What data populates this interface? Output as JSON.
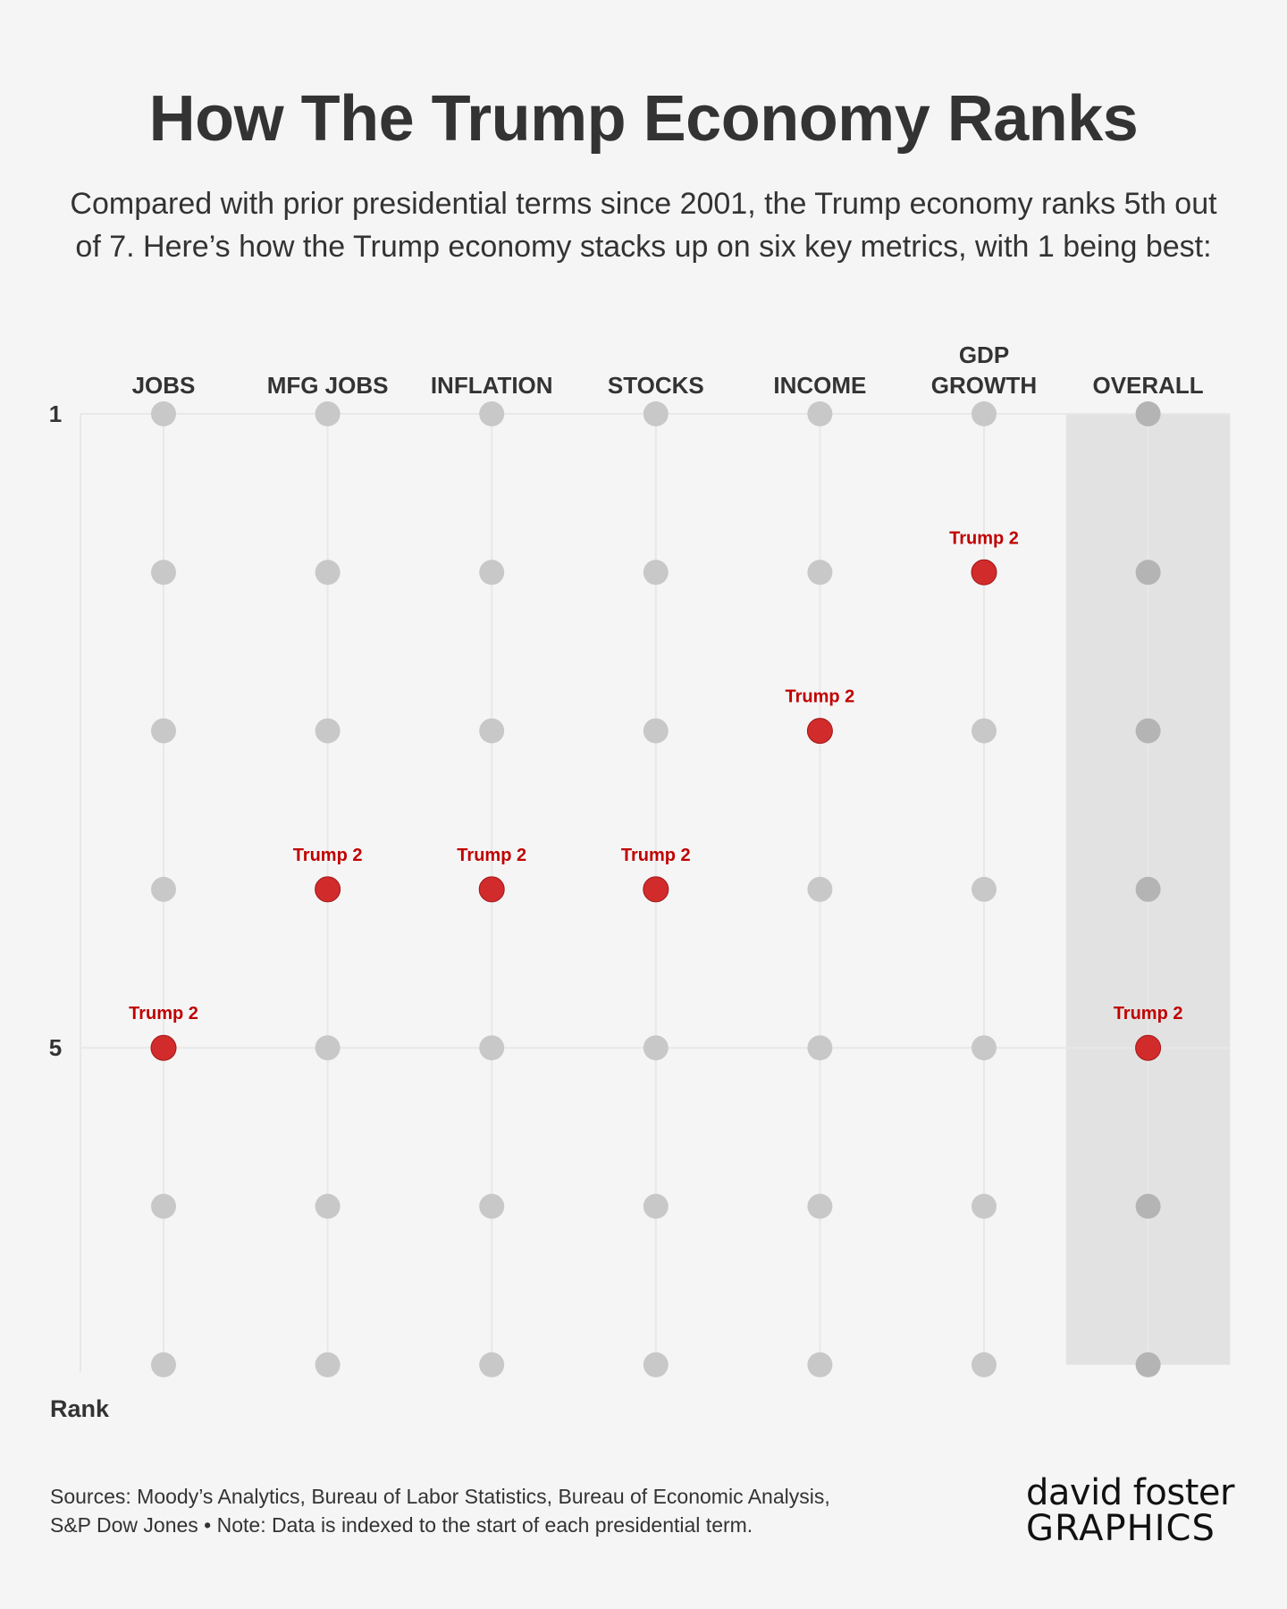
{
  "title": "How The Trump Economy Ranks",
  "subtitle": "Compared with prior presidential terms since 2001, the Trump economy ranks 5th out of 7. Here’s how the Trump economy stacks up on six key metrics, with 1 being best:",
  "colors": {
    "background": "#f5f5f5",
    "text": "#333333",
    "dot": "#c8c8c8",
    "dot_overall": "#b4b4b4",
    "highlight": "#d12b2b",
    "highlight_label": "#c00000",
    "overall_band": "#e2e2e2",
    "gridline": "#e8e8e8",
    "logo_accent": "#1e9be0"
  },
  "chart_data": {
    "type": "scatter",
    "categories": [
      "JOBS",
      "MFG JOBS",
      "INFLATION",
      "STOCKS",
      "INCOME",
      "GDP\nGROWTH",
      "OVERALL"
    ],
    "ranks": [
      1,
      2,
      3,
      4,
      5,
      6,
      7
    ],
    "ytick_labels": [
      "1",
      "5"
    ],
    "ylabel": "Rank",
    "ylim": [
      1,
      7
    ],
    "y_inverted": true,
    "highlight_series": {
      "label": "Trump 2",
      "values": [
        5,
        4,
        4,
        4,
        3,
        2,
        5
      ]
    },
    "highlighted_category": "OVERALL",
    "grid": true
  },
  "footer": {
    "sources_line1": "Sources: Moody’s Analytics, Bureau of Labor Statistics, Bureau of Economic Analysis,",
    "sources_line2": "S&P Dow Jones • Note: Data is indexed to the start of each presidential term."
  },
  "logo": {
    "line1": "david foster",
    "line2": "GRAPHICS"
  }
}
